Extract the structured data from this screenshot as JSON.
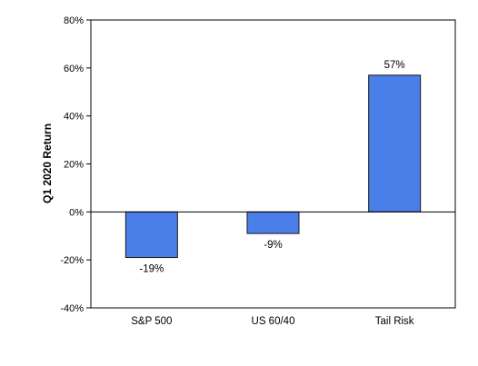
{
  "chart_data": {
    "type": "bar",
    "title": "",
    "xlabel": "",
    "ylabel": "Q1 2020 Return",
    "categories": [
      "S&P 500",
      "US 60/40",
      "Tail Risk"
    ],
    "values": [
      -19,
      -9,
      57
    ],
    "data_labels": [
      "-19%",
      "-9%",
      "57%"
    ],
    "ylim": [
      -40,
      80
    ],
    "yticks": [
      -40,
      -20,
      0,
      20,
      40,
      60,
      80
    ],
    "ytick_labels": [
      "-40%",
      "-20%",
      "0%",
      "20%",
      "40%",
      "60%",
      "80%"
    ],
    "grid": false,
    "legend": "none",
    "colors": {
      "bar_fill": "#4a7ee8",
      "bar_stroke": "#1a1a1a",
      "axis": "#000000"
    }
  }
}
